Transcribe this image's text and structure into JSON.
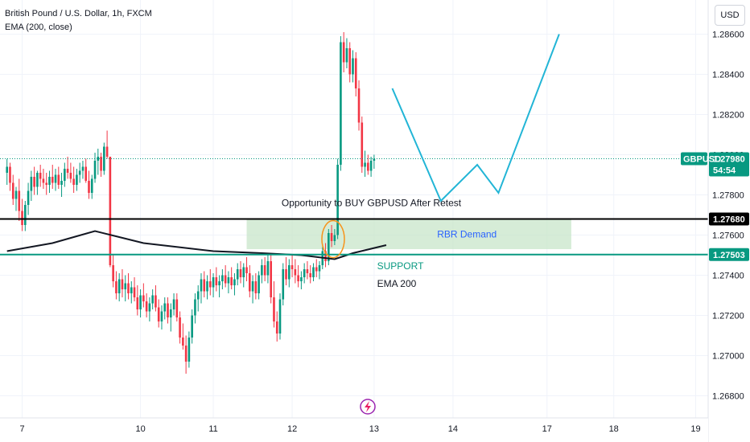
{
  "header": {
    "title": "British Pound / U.S. Dollar, 1h, FXCM",
    "indicator": "EMA (200, close)",
    "currency_button": "USD"
  },
  "colors": {
    "up": "#089981",
    "down": "#f23645",
    "teal_line": "#089981",
    "projection": "#22b5d6",
    "zone_fill": "#c8e6c9",
    "ema": "#131722",
    "circle": "#f7931a",
    "rbr_text": "#2962ff"
  },
  "chart_data": {
    "type": "candlestick",
    "symbol": "GBPUSD",
    "y_ticks": [
      1.268,
      1.27,
      1.272,
      1.274,
      1.276,
      1.278,
      1.28,
      1.282,
      1.284,
      1.286
    ],
    "y_tick_labels": [
      "1.26800",
      "1.27000",
      "1.27200",
      "1.27400",
      "1.27600",
      "1.27800",
      "1.28000",
      "1.28200",
      "1.28400",
      "1.28600"
    ],
    "ylim": [
      1.2669,
      1.2877
    ],
    "x_ticks": [
      {
        "label": "7",
        "index": 5
      },
      {
        "label": "10",
        "index": 44
      },
      {
        "label": "11",
        "index": 68
      },
      {
        "label": "12",
        "index": 94
      },
      {
        "label": "13",
        "index": 121
      },
      {
        "label": "14",
        "index": 147
      },
      {
        "label": "17",
        "index": 178
      },
      {
        "label": "18",
        "index": 200
      },
      {
        "label": "19",
        "index": 227
      }
    ],
    "current_price": 1.2798,
    "current_price_label": "1.27980",
    "countdown": "54:54",
    "ohlc": [
      [
        1.2791,
        1.2798,
        1.2785,
        1.2794
      ],
      [
        1.2794,
        1.2796,
        1.2782,
        1.2786
      ],
      [
        1.2786,
        1.279,
        1.2775,
        1.2778
      ],
      [
        1.2778,
        1.2784,
        1.2772,
        1.2782
      ],
      [
        1.2782,
        1.2788,
        1.2767,
        1.2772
      ],
      [
        1.2772,
        1.2778,
        1.2762,
        1.2765
      ],
      [
        1.2765,
        1.2777,
        1.2762,
        1.2775
      ],
      [
        1.2775,
        1.2786,
        1.277,
        1.2782
      ],
      [
        1.2782,
        1.2792,
        1.2777,
        1.2789
      ],
      [
        1.2789,
        1.2794,
        1.278,
        1.2784
      ],
      [
        1.2784,
        1.2792,
        1.278,
        1.2791
      ],
      [
        1.2791,
        1.2795,
        1.2784,
        1.2788
      ],
      [
        1.2788,
        1.2793,
        1.2783,
        1.2786
      ],
      [
        1.2786,
        1.2791,
        1.278,
        1.2785
      ],
      [
        1.2785,
        1.2792,
        1.2781,
        1.2789
      ],
      [
        1.2789,
        1.2795,
        1.2783,
        1.2786
      ],
      [
        1.2786,
        1.2793,
        1.2782,
        1.279
      ],
      [
        1.279,
        1.2794,
        1.2783,
        1.2785
      ],
      [
        1.2785,
        1.2791,
        1.2779,
        1.2787
      ],
      [
        1.2787,
        1.2796,
        1.2784,
        1.2793
      ],
      [
        1.2793,
        1.2799,
        1.2788,
        1.2791
      ],
      [
        1.2791,
        1.2796,
        1.2786,
        1.2788
      ],
      [
        1.2788,
        1.2794,
        1.2781,
        1.2785
      ],
      [
        1.2785,
        1.2793,
        1.2782,
        1.279
      ],
      [
        1.279,
        1.2796,
        1.2786,
        1.2792
      ],
      [
        1.2792,
        1.2797,
        1.2788,
        1.2794
      ],
      [
        1.2794,
        1.2798,
        1.2786,
        1.2787
      ],
      [
        1.2787,
        1.2792,
        1.2778,
        1.2781
      ],
      [
        1.2781,
        1.279,
        1.2778,
        1.2788
      ],
      [
        1.2788,
        1.2801,
        1.2786,
        1.2797
      ],
      [
        1.2797,
        1.2803,
        1.279,
        1.2799
      ],
      [
        1.2799,
        1.2801,
        1.2789,
        1.2792
      ],
      [
        1.2792,
        1.2806,
        1.279,
        1.2804
      ],
      [
        1.2804,
        1.2812,
        1.2798,
        1.2799
      ],
      [
        1.2799,
        1.2799,
        1.2744,
        1.2745
      ],
      [
        1.2745,
        1.275,
        1.2734,
        1.2737
      ],
      [
        1.2737,
        1.2742,
        1.2728,
        1.2731
      ],
      [
        1.2731,
        1.2741,
        1.2727,
        1.2738
      ],
      [
        1.2738,
        1.2743,
        1.2729,
        1.2733
      ],
      [
        1.2733,
        1.274,
        1.2727,
        1.2736
      ],
      [
        1.2736,
        1.2741,
        1.2728,
        1.2731
      ],
      [
        1.2731,
        1.2737,
        1.2726,
        1.2734
      ],
      [
        1.2734,
        1.2739,
        1.2727,
        1.2729
      ],
      [
        1.2729,
        1.2735,
        1.272,
        1.2723
      ],
      [
        1.2723,
        1.2733,
        1.2719,
        1.273
      ],
      [
        1.273,
        1.2736,
        1.2724,
        1.2727
      ],
      [
        1.2727,
        1.2731,
        1.2719,
        1.2722
      ],
      [
        1.2722,
        1.2729,
        1.2717,
        1.2726
      ],
      [
        1.2726,
        1.2733,
        1.2723,
        1.273
      ],
      [
        1.273,
        1.2735,
        1.2722,
        1.2724
      ],
      [
        1.2724,
        1.2728,
        1.2714,
        1.2717
      ],
      [
        1.2717,
        1.2725,
        1.2713,
        1.2722
      ],
      [
        1.2722,
        1.2729,
        1.2718,
        1.2726
      ],
      [
        1.2726,
        1.2729,
        1.2716,
        1.2719
      ],
      [
        1.2719,
        1.2726,
        1.2712,
        1.2723
      ],
      [
        1.2723,
        1.2731,
        1.272,
        1.2728
      ],
      [
        1.2728,
        1.2731,
        1.2717,
        1.2719
      ],
      [
        1.2719,
        1.2722,
        1.2706,
        1.2709
      ],
      [
        1.2709,
        1.2716,
        1.2703,
        1.2705
      ],
      [
        1.2705,
        1.271,
        1.2691,
        1.2697
      ],
      [
        1.2697,
        1.2712,
        1.2694,
        1.2709
      ],
      [
        1.2709,
        1.2723,
        1.2706,
        1.272
      ],
      [
        1.272,
        1.2731,
        1.2716,
        1.2728
      ],
      [
        1.2728,
        1.2735,
        1.2722,
        1.2732
      ],
      [
        1.2732,
        1.2741,
        1.2726,
        1.2738
      ],
      [
        1.2738,
        1.2742,
        1.2729,
        1.2732
      ],
      [
        1.2732,
        1.274,
        1.2728,
        1.2737
      ],
      [
        1.2737,
        1.2743,
        1.273,
        1.2734
      ],
      [
        1.2734,
        1.2741,
        1.2729,
        1.2739
      ],
      [
        1.2739,
        1.2744,
        1.2732,
        1.2735
      ],
      [
        1.2735,
        1.274,
        1.2729,
        1.2737
      ],
      [
        1.2737,
        1.2743,
        1.2733,
        1.274
      ],
      [
        1.274,
        1.2745,
        1.2734,
        1.2736
      ],
      [
        1.2736,
        1.2742,
        1.2731,
        1.2739
      ],
      [
        1.2739,
        1.2744,
        1.2733,
        1.2735
      ],
      [
        1.2735,
        1.2741,
        1.273,
        1.2738
      ],
      [
        1.2738,
        1.2746,
        1.2735,
        1.2743
      ],
      [
        1.2743,
        1.2747,
        1.2736,
        1.2739
      ],
      [
        1.2739,
        1.2746,
        1.2734,
        1.2744
      ],
      [
        1.2744,
        1.2749,
        1.2737,
        1.2741
      ],
      [
        1.2741,
        1.2745,
        1.2729,
        1.2732
      ],
      [
        1.2732,
        1.274,
        1.2726,
        1.2737
      ],
      [
        1.2737,
        1.2741,
        1.2728,
        1.2731
      ],
      [
        1.2731,
        1.2742,
        1.2728,
        1.274
      ],
      [
        1.274,
        1.2748,
        1.2736,
        1.2745
      ],
      [
        1.2745,
        1.2749,
        1.2737,
        1.274
      ],
      [
        1.274,
        1.275,
        1.2736,
        1.2747
      ],
      [
        1.2747,
        1.2751,
        1.2726,
        1.2729
      ],
      [
        1.2729,
        1.2737,
        1.2714,
        1.2717
      ],
      [
        1.2717,
        1.2722,
        1.2707,
        1.2711
      ],
      [
        1.2711,
        1.2731,
        1.2708,
        1.2728
      ],
      [
        1.2728,
        1.2746,
        1.2725,
        1.2743
      ],
      [
        1.2743,
        1.2749,
        1.2735,
        1.2738
      ],
      [
        1.2738,
        1.2748,
        1.2734,
        1.2745
      ],
      [
        1.2745,
        1.275,
        1.2739,
        1.2743
      ],
      [
        1.2743,
        1.2748,
        1.2736,
        1.274
      ],
      [
        1.274,
        1.2745,
        1.2734,
        1.2737
      ],
      [
        1.2737,
        1.2742,
        1.2733,
        1.2739
      ],
      [
        1.2739,
        1.2746,
        1.2736,
        1.2743
      ],
      [
        1.2743,
        1.2747,
        1.2738,
        1.2741
      ],
      [
        1.2741,
        1.2745,
        1.2736,
        1.2739
      ],
      [
        1.2739,
        1.2746,
        1.2737,
        1.2744
      ],
      [
        1.2744,
        1.2748,
        1.2739,
        1.2742
      ],
      [
        1.2742,
        1.2747,
        1.2738,
        1.2745
      ],
      [
        1.2745,
        1.2754,
        1.2743,
        1.2752
      ],
      [
        1.2752,
        1.2756,
        1.2744,
        1.2747
      ],
      [
        1.2747,
        1.2763,
        1.2745,
        1.2761
      ],
      [
        1.2761,
        1.2765,
        1.2754,
        1.2757
      ],
      [
        1.2757,
        1.2763,
        1.2755,
        1.276
      ],
      [
        1.276,
        1.2798,
        1.2758,
        1.2795
      ],
      [
        1.2795,
        1.2859,
        1.2792,
        1.2856
      ],
      [
        1.2856,
        1.2861,
        1.2841,
        1.2846
      ],
      [
        1.2846,
        1.2858,
        1.2843,
        1.2853
      ],
      [
        1.2853,
        1.2856,
        1.2836,
        1.284
      ],
      [
        1.284,
        1.2852,
        1.2836,
        1.2848
      ],
      [
        1.2848,
        1.2851,
        1.2829,
        1.2833
      ],
      [
        1.2833,
        1.2837,
        1.2812,
        1.2816
      ],
      [
        1.2816,
        1.2819,
        1.2791,
        1.2794
      ],
      [
        1.2794,
        1.2802,
        1.2789,
        1.2796
      ],
      [
        1.2796,
        1.28,
        1.279,
        1.2792
      ],
      [
        1.2792,
        1.2799,
        1.2789,
        1.2797
      ],
      [
        1.2797,
        1.28,
        1.2793,
        1.2798
      ]
    ],
    "ema": [
      [
        0,
        1.2752
      ],
      [
        15,
        1.2756
      ],
      [
        29,
        1.2762
      ],
      [
        45,
        1.2756
      ],
      [
        68,
        1.2752
      ],
      [
        84,
        1.2751
      ],
      [
        97,
        1.275
      ],
      [
        108,
        1.2748
      ],
      [
        114,
        1.2751
      ],
      [
        125,
        1.2755
      ]
    ],
    "levels": {
      "resistance": 1.2768,
      "resistance_label": "1.27680",
      "support": 1.27503,
      "support_label": "1.27503"
    },
    "zone": {
      "x_start": 79,
      "x_end": 186,
      "top": 1.2768,
      "bottom": 1.2753,
      "label": "RBR Demand"
    },
    "projection": [
      [
        127,
        1.2833
      ],
      [
        143,
        1.2777
      ],
      [
        155,
        1.2795
      ],
      [
        162,
        1.2781
      ],
      [
        182,
        1.286
      ]
    ],
    "circle": {
      "x": 107.5,
      "y": 1.2758
    },
    "annotations": {
      "opportunity": "Opportunity to BUY GBPUSD After Retest",
      "support": "SUPPORT",
      "ema200": "EMA 200"
    }
  }
}
